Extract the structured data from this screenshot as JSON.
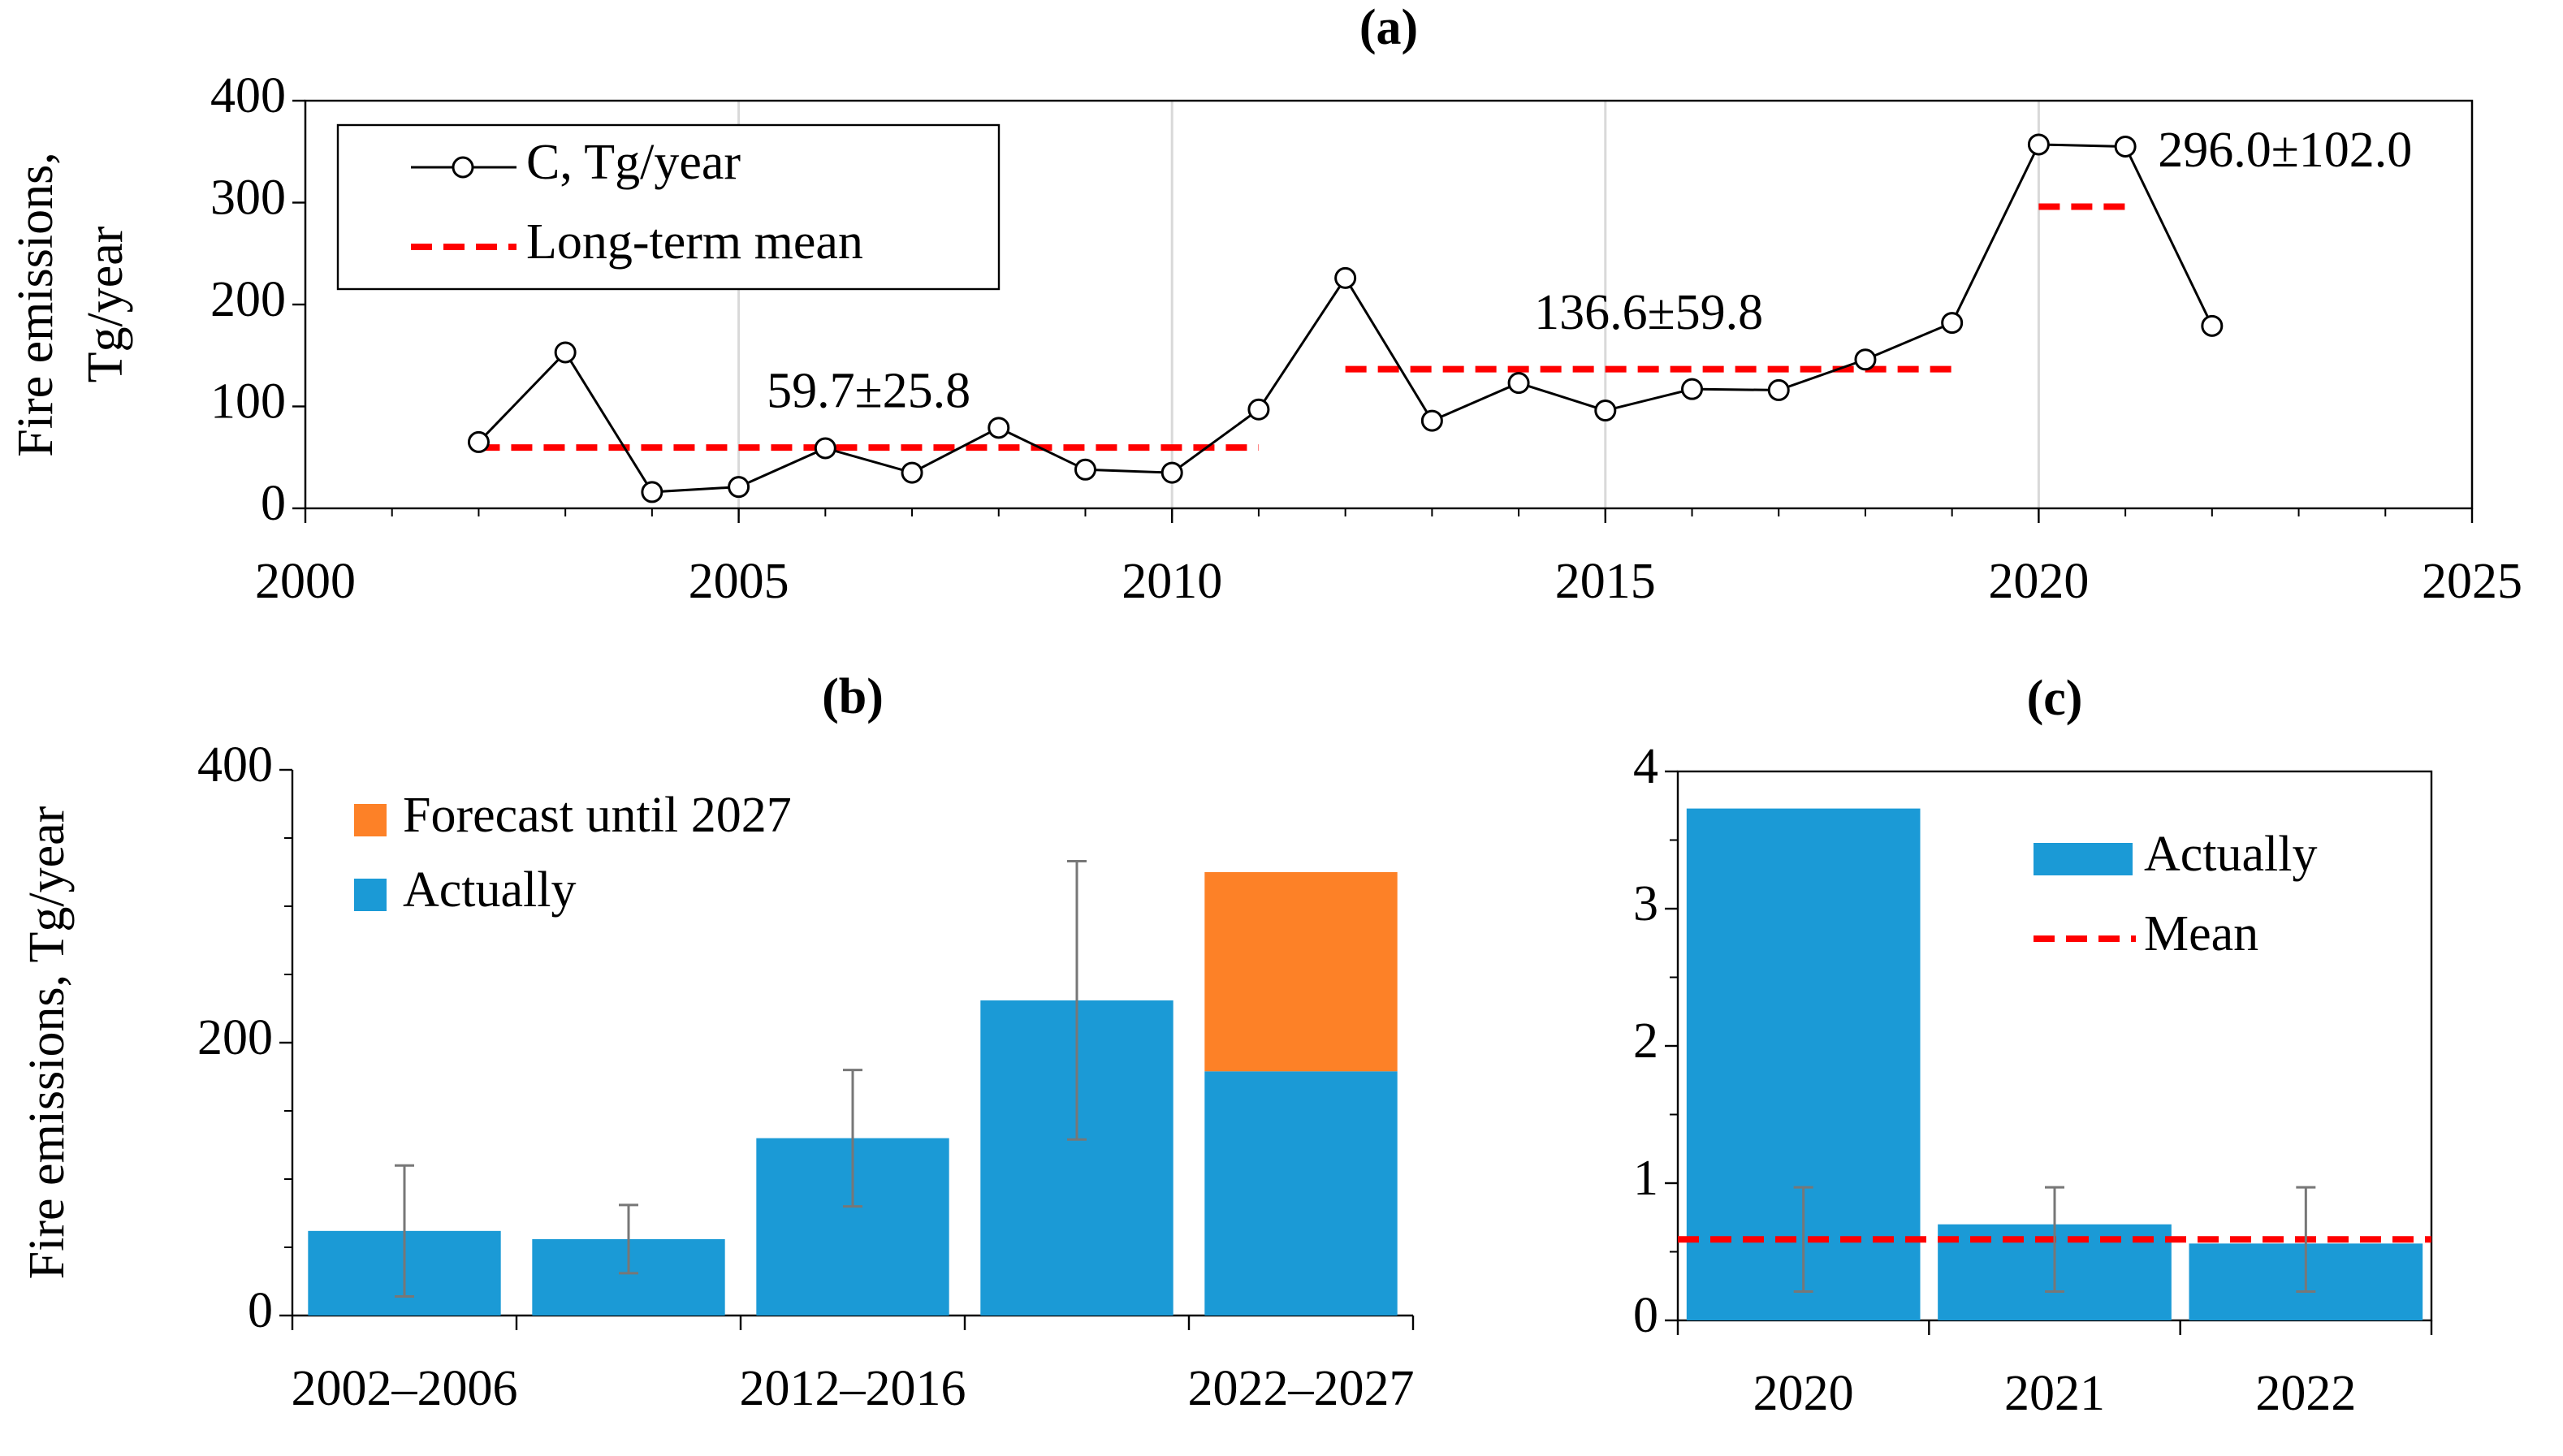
{
  "chart_data": [
    {
      "type": "line",
      "title": "(a)",
      "y_label": [
        "Fire emissions,",
        "Tg/year"
      ],
      "x": [
        2002,
        2003,
        2004,
        2005,
        2006,
        2007,
        2008,
        2009,
        2010,
        2011,
        2012,
        2013,
        2014,
        2015,
        2016,
        2017,
        2018,
        2019,
        2020,
        2021,
        2022
      ],
      "series": [
        {
          "name": "C, Tg/year",
          "color": "#000000",
          "values": [
            65,
            153,
            16,
            21,
            59,
            35,
            79,
            38,
            35,
            97,
            226,
            86,
            123,
            96,
            117,
            116,
            146,
            182,
            357,
            355,
            179
          ]
        },
        {
          "name": "Long-term mean",
          "color": "#ff0000",
          "dashed": true,
          "segments": [
            {
              "x": [
                2002,
                2011
              ],
              "value": 59.7,
              "label": "59.7±25.8"
            },
            {
              "x": [
                2012,
                2019
              ],
              "value": 136.6,
              "label": "136.6±59.8"
            },
            {
              "x": [
                2020,
                2021
              ],
              "value": 296.0,
              "label": "296.0±102.0"
            }
          ]
        }
      ],
      "xlim": [
        2000,
        2025
      ],
      "xticks": [
        2000,
        2005,
        2010,
        2015,
        2020,
        2025
      ],
      "ylim": [
        0,
        400
      ],
      "yticks": [
        0,
        100,
        200,
        300,
        400
      ],
      "grid": true
    },
    {
      "type": "stacked_bar",
      "title": "(b)",
      "y_label": "Fire emissions,  Tg/year",
      "categories": [
        "2002–2006",
        null,
        "2012–2016",
        null,
        "2022–2027"
      ],
      "series": [
        {
          "name": "Actually",
          "color": "#1b9ad6",
          "values": [
            62,
            56,
            130,
            231,
            179
          ],
          "errors": [
            48,
            25,
            50,
            102,
            null
          ]
        },
        {
          "name": "Forecast until 2027",
          "color": "#fd8127",
          "values": [
            null,
            null,
            null,
            null,
            146
          ]
        }
      ],
      "ylim": [
        0,
        400
      ],
      "yticks": [
        0,
        200,
        400
      ]
    },
    {
      "type": "bar_mean",
      "title": "(c)",
      "categories": [
        "2020",
        "2021",
        "2022"
      ],
      "series": [
        {
          "name": "Actually",
          "color": "#1b9ad6",
          "values": [
            3.73,
            0.7,
            0.56
          ]
        },
        {
          "name": "Mean",
          "color": "#ff0000",
          "dashed": true,
          "values": [
            0.59,
            0.59,
            0.59
          ],
          "errors": [
            0.38,
            0.38,
            0.38
          ]
        }
      ],
      "ylim": [
        0,
        4
      ],
      "yticks": [
        0,
        1,
        2,
        3,
        4
      ]
    }
  ]
}
